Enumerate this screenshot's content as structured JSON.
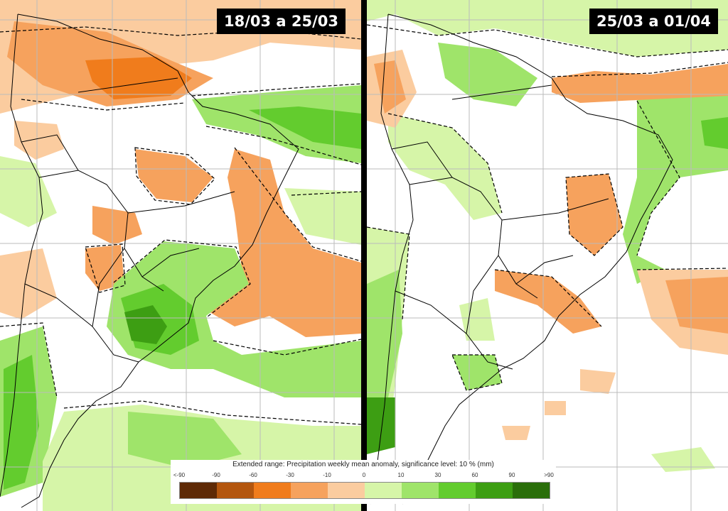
{
  "panels": [
    {
      "period_label": "18/03 a 25/03"
    },
    {
      "period_label": "25/03 a 01/04"
    }
  ],
  "legend": {
    "title": "Extended range: Precipitation weekly mean anomaly, significance level: 10 % (mm)",
    "ticks": [
      "<-90",
      "-90",
      "-60",
      "-30",
      "-10",
      "0",
      "10",
      "30",
      "60",
      "90",
      ">90"
    ],
    "colors": [
      "#5e2a06",
      "#b3560e",
      "#f07c1c",
      "#f6a25d",
      "#fbcc9f",
      "#d6f5a8",
      "#9fe46a",
      "#63cc2e",
      "#3d9e13",
      "#2a6e0a"
    ]
  },
  "colors": {
    "land_border": "#000000",
    "gridline": "#bbbbbb"
  }
}
